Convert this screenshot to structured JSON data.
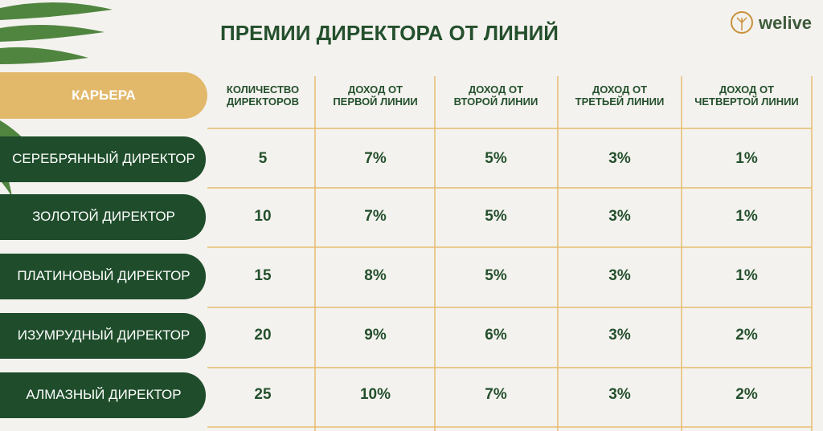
{
  "header": {
    "title": "ПРЕМИИ ДИРЕКТОРА ОТ ЛИНИЙ",
    "logo": "welive"
  },
  "table": {
    "corner": "КАРЬЕРА",
    "columns": [
      "КОЛИЧЕСТВО\nДИРЕКТОРОВ",
      "ДОХОД ОТ\nПЕРВОЙ ЛИНИИ",
      "ДОХОД ОТ\nВТОРОЙ ЛИНИИ",
      "ДОХОД ОТ\nТРЕТЬЕЙ ЛИНИИ",
      "ДОХОД ОТ\nЧЕТВЕРТОЙ ЛИНИИ"
    ],
    "rows": [
      [
        "СЕРЕБРЯННЫЙ ДИРЕКТОР",
        "5",
        "7%",
        "5%",
        "3%",
        "1%"
      ],
      [
        "ЗОЛОТОЙ ДИРЕКТОР",
        "10",
        "7%",
        "5%",
        "3%",
        "1%"
      ],
      [
        "ПЛАТИНОВЫЙ ДИРЕКТОР",
        "15",
        "8%",
        "5%",
        "3%",
        "1%"
      ],
      [
        "ИЗУМРУДНЫЙ ДИРЕКТОР",
        "20",
        "9%",
        "6%",
        "3%",
        "2%"
      ],
      [
        "АЛМАЗНЫЙ ДИРЕКТОР",
        "25",
        "10%",
        "7%",
        "3%",
        "2%"
      ]
    ]
  }
}
